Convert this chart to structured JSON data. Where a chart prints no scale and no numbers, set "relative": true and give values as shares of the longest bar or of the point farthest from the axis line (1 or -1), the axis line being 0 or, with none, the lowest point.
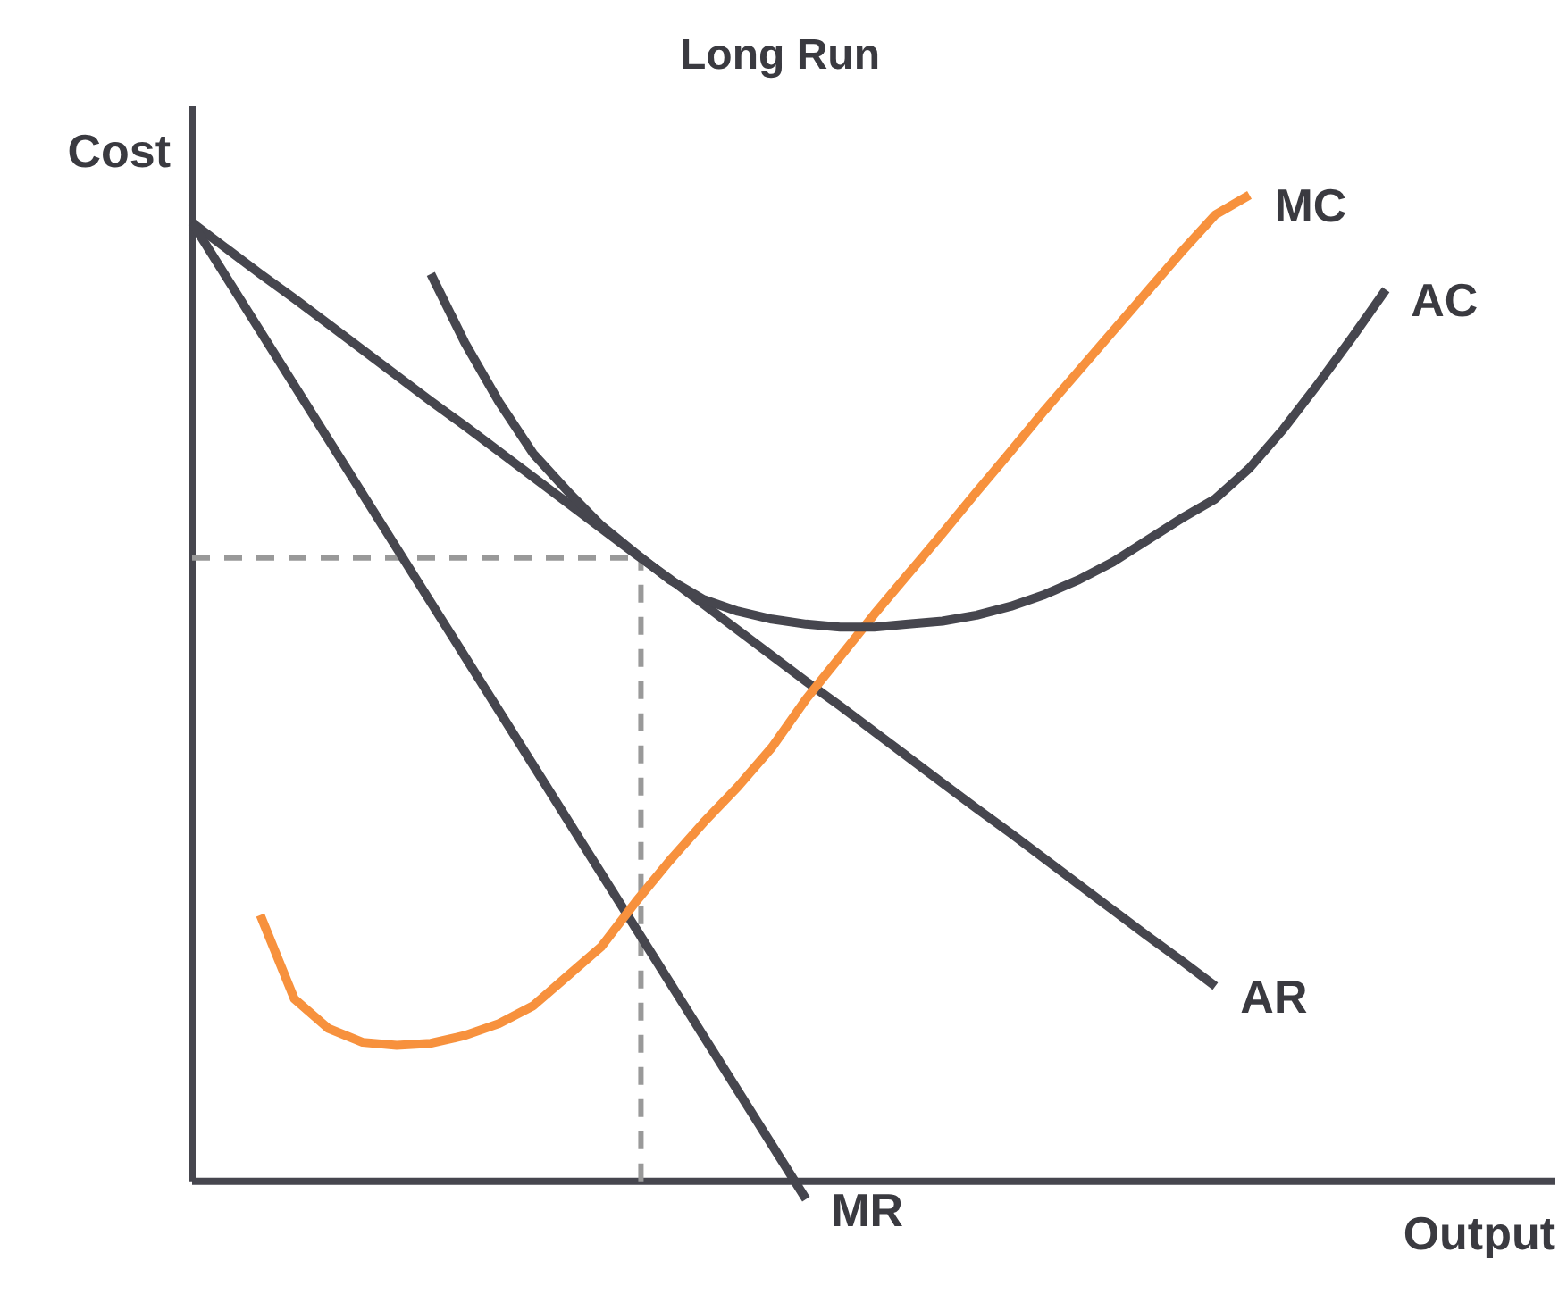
{
  "chart_data": {
    "type": "line",
    "title": "Long Run",
    "xlabel": "Output",
    "ylabel": "Cost",
    "relative": true,
    "legend": false,
    "grid": false,
    "tick_labels": false,
    "marker": "none",
    "line_style": "solid",
    "categories": [
      null,
      null,
      null,
      null,
      null,
      null,
      null,
      null,
      null,
      null,
      null,
      null,
      null,
      null,
      null,
      null,
      null,
      null,
      null,
      null,
      null,
      null,
      null,
      null,
      null,
      null,
      null,
      null,
      null,
      null,
      null,
      null,
      null,
      null,
      null,
      null
    ],
    "series": [
      {
        "name": "AR",
        "color": "#46464e",
        "values": [
          0.972,
          0.946,
          0.92,
          0.895,
          0.869,
          0.843,
          0.817,
          0.791,
          0.766,
          0.74,
          0.714,
          0.688,
          0.662,
          0.636,
          0.611,
          0.585,
          0.559,
          0.533,
          0.507,
          0.482,
          0.456,
          0.43,
          0.404,
          0.378,
          0.353,
          0.327,
          0.301,
          0.275,
          0.249,
          0.224,
          0.198,
          null,
          null,
          null,
          null,
          null
        ]
      },
      {
        "name": "MR",
        "color": "#46464e",
        "values": [
          0.972,
          0.917,
          0.862,
          0.807,
          0.752,
          0.697,
          0.642,
          0.587,
          0.532,
          0.477,
          0.422,
          0.367,
          0.312,
          0.257,
          0.202,
          0.147,
          0.092,
          0.037,
          -0.018,
          null,
          null,
          null,
          null,
          null,
          null,
          null,
          null,
          null,
          null,
          null,
          null,
          null,
          null,
          null,
          null,
          null
        ]
      },
      {
        "name": "MC",
        "color": "#f7913d",
        "values": [
          null,
          null,
          0.27,
          0.185,
          0.155,
          0.141,
          0.138,
          0.14,
          0.148,
          0.16,
          0.178,
          0.208,
          0.238,
          0.283,
          0.325,
          0.364,
          0.4,
          0.44,
          0.489,
          0.532,
          0.575,
          0.616,
          0.657,
          0.699,
          0.74,
          0.782,
          0.822,
          0.862,
          0.902,
          0.942,
          0.98,
          1.0,
          null,
          null,
          null,
          null
        ]
      },
      {
        "name": "AC",
        "color": "#46464e",
        "values": [
          null,
          null,
          null,
          null,
          null,
          null,
          null,
          0.92,
          0.85,
          0.79,
          0.738,
          0.7,
          0.665,
          0.637,
          0.61,
          0.59,
          0.578,
          0.57,
          0.565,
          0.562,
          0.562,
          0.565,
          0.568,
          0.574,
          0.583,
          0.595,
          0.61,
          0.628,
          0.65,
          0.672,
          0.692,
          0.723,
          0.763,
          0.808,
          0.855,
          0.904
        ]
      }
    ],
    "ref_lines": [
      {
        "axis": "y",
        "value": 0.632,
        "color": "#999999",
        "line_style": "dashed"
      }
    ]
  }
}
